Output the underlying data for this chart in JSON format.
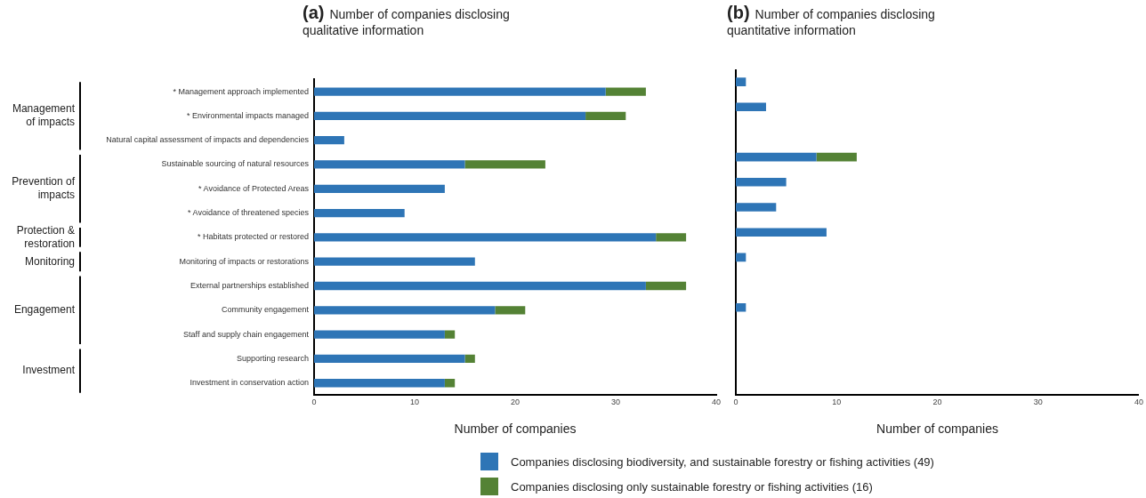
{
  "chart_data": [
    {
      "type": "bar",
      "title": "(a) Number of companies disclosing qualitative information",
      "xlabel": "Number of companies",
      "orientation": "horizontal",
      "stacked": true,
      "categories": [
        "* Management approach implemented",
        "* Environmental impacts managed",
        "Natural capital assessment of impacts and dependencies",
        "Sustainable sourcing of natural resources",
        "* Avoidance of Protected Areas",
        "* Avoidance of threatened species",
        "* Habitats protected or restored",
        "Monitoring of impacts or restorations",
        "External partnerships established",
        "Community engagement",
        "Staff and supply chain engagement",
        "Supporting research",
        "Investment in conservation action"
      ],
      "series": [
        {
          "name": "Companies disclosing biodiversity, and sustainable forestry or fishing activities (49)",
          "color": "#2e75b6",
          "values": [
            29,
            27,
            3,
            15,
            13,
            9,
            34,
            16,
            33,
            18,
            13,
            15,
            13
          ]
        },
        {
          "name": "Companies disclosing only sustainable forestry or fishing activities (16)",
          "color": "#548235",
          "values": [
            4,
            4,
            0,
            8,
            0,
            0,
            3,
            0,
            4,
            3,
            1,
            1,
            1
          ]
        }
      ],
      "xlim": [
        0,
        40
      ],
      "xticks": [
        0,
        10,
        20,
        30,
        40
      ],
      "grid": false,
      "legend": "bottom",
      "annotations": [
        "Management of impacts",
        "Prevention of impacts",
        "Protection & restoration",
        "Monitoring",
        "Engagement",
        "Investment"
      ]
    },
    {
      "type": "bar",
      "title": "(b) Number of companies disclosing quantitative information",
      "xlabel": "Number of companies",
      "orientation": "horizontal",
      "stacked": true,
      "categories": [
        null,
        null,
        null,
        null,
        null,
        null,
        null,
        null,
        null,
        null,
        null,
        null,
        null
      ],
      "series": [
        {
          "color": "#2e75b6",
          "values": [
            1,
            3,
            0,
            8,
            5,
            4,
            9,
            1,
            0,
            1,
            0,
            0,
            0
          ]
        },
        {
          "color": "#548235",
          "values": [
            0,
            0,
            0,
            4,
            0,
            0,
            0,
            0,
            0,
            0,
            0,
            0,
            0
          ]
        }
      ],
      "xlim": [
        0,
        40
      ],
      "xticks": [
        0,
        10,
        20,
        30,
        40
      ],
      "grid": false,
      "tick_labels": "x"
    }
  ]
}
